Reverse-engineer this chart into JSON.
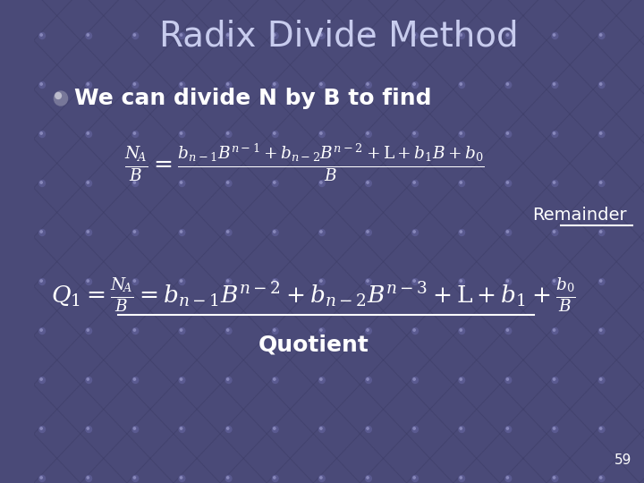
{
  "title": "Radix Divide Method",
  "title_color": "#C8CCEE",
  "title_fontsize": 28,
  "bg_color": "#4a4a78",
  "grid_color": "#3d3d6a",
  "dot_color": "#555580",
  "text_color": "white",
  "bullet_text": "We can divide N by B to find",
  "bullet_fontsize": 18,
  "remainder_label": "Remainder",
  "quotient_label": "Quotient",
  "page_number": "59",
  "eq_color": "white",
  "eq1_fontsize": 19,
  "eq2_fontsize": 19,
  "label_fontsize": 14
}
